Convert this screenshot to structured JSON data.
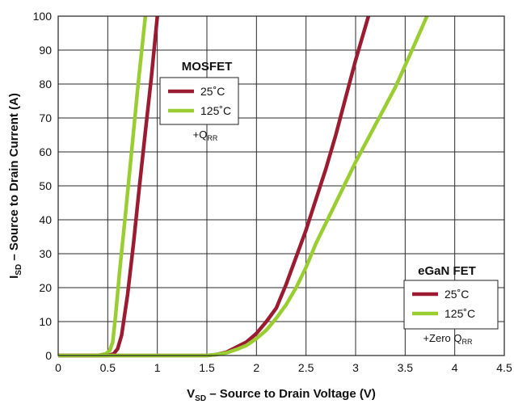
{
  "chart_data": {
    "type": "line",
    "xlabel": {
      "main": "V",
      "sub": "SD",
      "rest": " – Source to Drain Voltage (V)"
    },
    "ylabel": {
      "main": "I",
      "sub": "SD",
      "rest": " – Source to Drain Current (A)"
    },
    "xlim": [
      0,
      4.5
    ],
    "ylim": [
      0,
      100
    ],
    "x_ticks": [
      "0",
      "0.5",
      "1",
      "1.5",
      "2",
      "2.5",
      "3",
      "3.5",
      "4",
      "4.5"
    ],
    "y_ticks": [
      "0",
      "10",
      "20",
      "30",
      "40",
      "50",
      "60",
      "70",
      "80",
      "90",
      "100"
    ],
    "grid": true,
    "legends": [
      {
        "title": "MOSFET",
        "entries": [
          {
            "label": "25˚C",
            "color": "#9b1b30"
          },
          {
            "label": "125˚C",
            "color": "#9acd32"
          }
        ],
        "note": {
          "main": "+Q",
          "sub": "RR"
        },
        "placement": "upper-center-left"
      },
      {
        "title": "eGaN FET",
        "entries": [
          {
            "label": "25˚C",
            "color": "#9b1b30"
          },
          {
            "label": "125˚C",
            "color": "#9acd32"
          }
        ],
        "note": {
          "main": "+Zero Q",
          "sub": "RR"
        },
        "placement": "lower-right"
      }
    ],
    "series": [
      {
        "group": "MOSFET",
        "color": "#9acd32",
        "points": [
          [
            0,
            0
          ],
          [
            0.4,
            0
          ],
          [
            0.48,
            0.5
          ],
          [
            0.52,
            1.5
          ],
          [
            0.55,
            4
          ],
          [
            0.58,
            12
          ],
          [
            0.62,
            25
          ],
          [
            0.68,
            42
          ],
          [
            0.74,
            60
          ],
          [
            0.8,
            78
          ],
          [
            0.85,
            92
          ],
          [
            0.88,
            100
          ]
        ]
      },
      {
        "group": "MOSFET",
        "color": "#9b1b30",
        "points": [
          [
            0,
            0
          ],
          [
            0.5,
            0
          ],
          [
            0.56,
            0.5
          ],
          [
            0.6,
            2
          ],
          [
            0.64,
            6
          ],
          [
            0.7,
            18
          ],
          [
            0.76,
            33
          ],
          [
            0.82,
            50
          ],
          [
            0.88,
            66
          ],
          [
            0.94,
            82
          ],
          [
            1.0,
            100
          ]
        ]
      },
      {
        "group": "eGaN FET",
        "color": "#9b1b30",
        "points": [
          [
            0,
            0
          ],
          [
            1.5,
            0
          ],
          [
            1.6,
            0.3
          ],
          [
            1.7,
            1
          ],
          [
            1.8,
            2.5
          ],
          [
            1.9,
            4
          ],
          [
            2.0,
            6.5
          ],
          [
            2.1,
            10
          ],
          [
            2.2,
            14
          ],
          [
            2.3,
            21
          ],
          [
            2.4,
            29
          ],
          [
            2.5,
            37
          ],
          [
            2.6,
            46
          ],
          [
            2.7,
            55
          ],
          [
            2.8,
            65
          ],
          [
            2.9,
            76
          ],
          [
            3.0,
            87
          ],
          [
            3.13,
            100
          ]
        ]
      },
      {
        "group": "eGaN FET",
        "color": "#9acd32",
        "points": [
          [
            0,
            0
          ],
          [
            1.5,
            0
          ],
          [
            1.6,
            0.3
          ],
          [
            1.7,
            0.8
          ],
          [
            1.8,
            1.8
          ],
          [
            1.9,
            3
          ],
          [
            2.0,
            5
          ],
          [
            2.1,
            7.5
          ],
          [
            2.2,
            11
          ],
          [
            2.3,
            15
          ],
          [
            2.4,
            20
          ],
          [
            2.5,
            26
          ],
          [
            2.6,
            33
          ],
          [
            2.8,
            45
          ],
          [
            3.0,
            57
          ],
          [
            3.2,
            68
          ],
          [
            3.4,
            79
          ],
          [
            3.6,
            92
          ],
          [
            3.72,
            100
          ]
        ]
      }
    ]
  }
}
